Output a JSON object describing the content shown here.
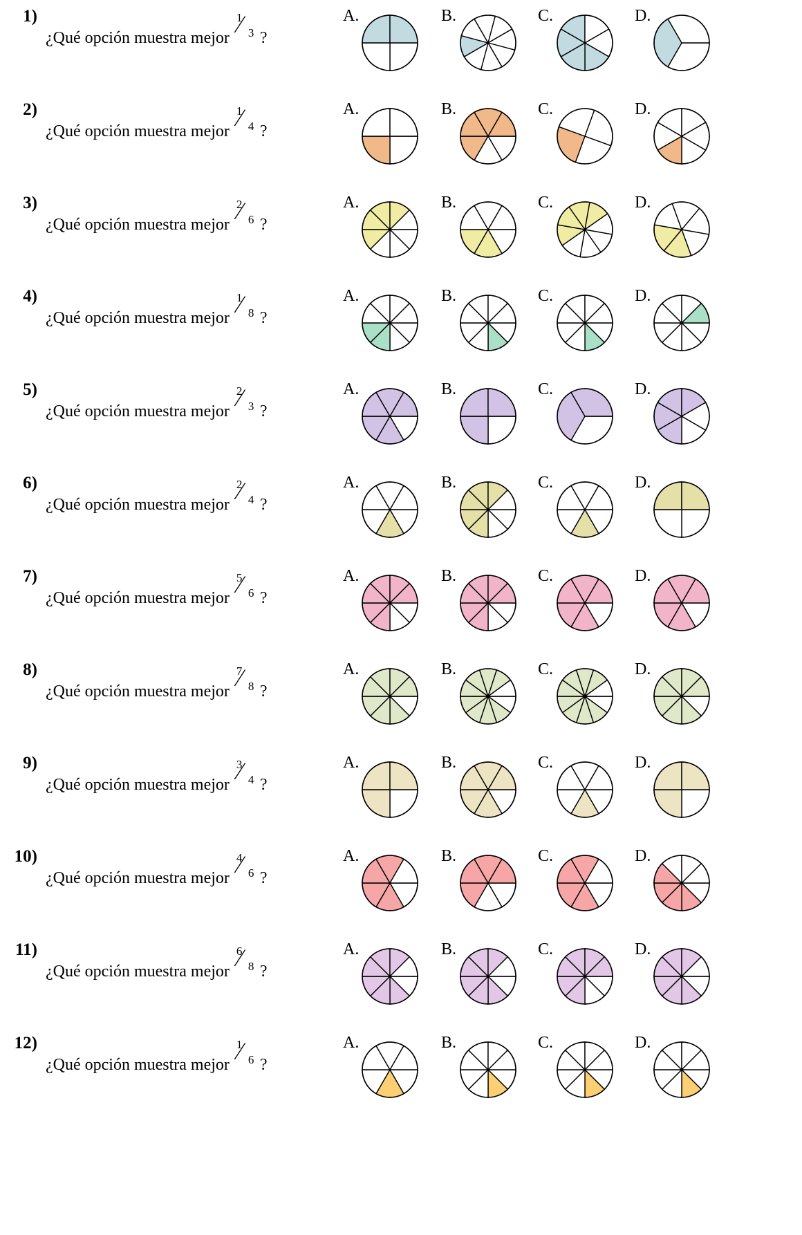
{
  "prompt": "¿Qué opción muestra mejor",
  "qmark": "?",
  "questions": [
    {
      "number": "1)",
      "num": "1",
      "den": "3",
      "color": "#c1dbe0",
      "options": [
        {
          "label": "A.",
          "slices": 4,
          "rotation": 0,
          "shaded": [
            2,
            3
          ]
        },
        {
          "label": "B.",
          "slices": 8,
          "rotation": 60,
          "shaded": [
            2
          ]
        },
        {
          "label": "C.",
          "slices": 6,
          "rotation": -30,
          "shaded": [
            1,
            2,
            3,
            4
          ]
        },
        {
          "label": "D.",
          "slices": 3,
          "rotation": 0,
          "shaded": [
            1
          ]
        }
      ]
    },
    {
      "number": "2)",
      "num": "1",
      "den": "4",
      "color": "#f1b98a",
      "options": [
        {
          "label": "A.",
          "slices": 4,
          "rotation": 0,
          "shaded": [
            1
          ]
        },
        {
          "label": "B.",
          "slices": 6,
          "rotation": 0,
          "shaded": [
            2,
            3,
            4,
            5
          ]
        },
        {
          "label": "C.",
          "slices": 4,
          "rotation": 20,
          "shaded": [
            1
          ]
        },
        {
          "label": "D.",
          "slices": 6,
          "rotation": 30,
          "shaded": [
            1
          ]
        }
      ]
    },
    {
      "number": "3)",
      "num": "2",
      "den": "6",
      "color": "#f1eca4",
      "options": [
        {
          "label": "A.",
          "slices": 8,
          "rotation": 0,
          "shaded": [
            3,
            4,
            5,
            6
          ]
        },
        {
          "label": "B.",
          "slices": 6,
          "rotation": 0,
          "shaded": [
            1,
            2
          ]
        },
        {
          "label": "C.",
          "slices": 8,
          "rotation": 10,
          "shaded": [
            3,
            4,
            5,
            6
          ]
        },
        {
          "label": "D.",
          "slices": 6,
          "rotation": 10,
          "shaded": [
            1,
            2
          ]
        }
      ]
    },
    {
      "number": "4)",
      "num": "1",
      "den": "8",
      "color": "#aadfc8",
      "options": [
        {
          "label": "A.",
          "slices": 8,
          "rotation": 0,
          "shaded": [
            2,
            3
          ]
        },
        {
          "label": "B.",
          "slices": 8,
          "rotation": 0,
          "shaded": [
            1
          ]
        },
        {
          "label": "C.",
          "slices": 8,
          "rotation": 0,
          "shaded": [
            1
          ]
        },
        {
          "label": "D.",
          "slices": 8,
          "rotation": 0,
          "shaded": [
            7
          ]
        }
      ]
    },
    {
      "number": "5)",
      "num": "2",
      "den": "3",
      "color": "#d2c3e6",
      "options": [
        {
          "label": "A.",
          "slices": 6,
          "rotation": 0,
          "shaded": [
            1,
            2,
            3,
            4,
            5
          ]
        },
        {
          "label": "B.",
          "slices": 4,
          "rotation": 0,
          "shaded": [
            1,
            2,
            3
          ]
        },
        {
          "label": "C.",
          "slices": 3,
          "rotation": 0,
          "shaded": [
            1,
            2
          ]
        },
        {
          "label": "D.",
          "slices": 6,
          "rotation": 30,
          "shaded": [
            1,
            2,
            3,
            4
          ]
        }
      ]
    },
    {
      "number": "6)",
      "num": "2",
      "den": "4",
      "color": "#e5dfa8",
      "options": [
        {
          "label": "A.",
          "slices": 6,
          "rotation": 0,
          "shaded": [
            1
          ]
        },
        {
          "label": "B.",
          "slices": 8,
          "rotation": 0,
          "shaded": [
            2,
            3,
            4,
            5,
            6
          ]
        },
        {
          "label": "C.",
          "slices": 6,
          "rotation": 0,
          "shaded": [
            1
          ]
        },
        {
          "label": "D.",
          "slices": 4,
          "rotation": 0,
          "shaded": [
            2,
            3
          ]
        }
      ]
    },
    {
      "number": "7)",
      "num": "5",
      "den": "6",
      "color": "#f1b4c9",
      "options": [
        {
          "label": "A.",
          "slices": 8,
          "rotation": 0,
          "shaded": [
            2,
            3,
            4,
            5,
            6,
            7
          ]
        },
        {
          "label": "B.",
          "slices": 8,
          "rotation": 0,
          "shaded": [
            2,
            3,
            4,
            5,
            6,
            7
          ]
        },
        {
          "label": "C.",
          "slices": 6,
          "rotation": 0,
          "shaded": [
            1,
            2,
            3,
            4,
            5
          ]
        },
        {
          "label": "D.",
          "slices": 6,
          "rotation": 0,
          "shaded": [
            1,
            2,
            3,
            4,
            5
          ]
        }
      ]
    },
    {
      "number": "8)",
      "num": "7",
      "den": "8",
      "color": "#dfe8c8",
      "options": [
        {
          "label": "A.",
          "slices": 8,
          "rotation": 0,
          "shaded": [
            1,
            2,
            3,
            4,
            5,
            6,
            7
          ]
        },
        {
          "label": "B.",
          "slices": 10,
          "rotation": 0,
          "shaded": [
            1,
            2,
            3,
            4,
            5,
            6,
            7,
            8
          ]
        },
        {
          "label": "C.",
          "slices": 10,
          "rotation": 0,
          "shaded": [
            1,
            2,
            3,
            4,
            5,
            6,
            7,
            8
          ]
        },
        {
          "label": "D.",
          "slices": 8,
          "rotation": 0,
          "shaded": [
            1,
            2,
            3,
            4,
            5,
            6,
            7
          ]
        }
      ]
    },
    {
      "number": "9)",
      "num": "3",
      "den": "4",
      "color": "#ede4c4",
      "options": [
        {
          "label": "A.",
          "slices": 4,
          "rotation": 0,
          "shaded": [
            1,
            2,
            3
          ]
        },
        {
          "label": "B.",
          "slices": 6,
          "rotation": 0,
          "shaded": [
            1,
            2,
            3,
            4,
            5
          ]
        },
        {
          "label": "C.",
          "slices": 6,
          "rotation": 0,
          "shaded": [
            1
          ]
        },
        {
          "label": "D.",
          "slices": 4,
          "rotation": 0,
          "shaded": [
            1,
            2,
            3
          ]
        }
      ]
    },
    {
      "number": "10)",
      "num": "4",
      "den": "6",
      "color": "#f6a6a6",
      "options": [
        {
          "label": "A.",
          "slices": 6,
          "rotation": 0,
          "shaded": [
            1,
            2,
            3,
            4
          ]
        },
        {
          "label": "B.",
          "slices": 6,
          "rotation": 0,
          "shaded": [
            2,
            3,
            4,
            5
          ]
        },
        {
          "label": "C.",
          "slices": 6,
          "rotation": 0,
          "shaded": [
            1,
            2,
            3,
            4
          ]
        },
        {
          "label": "D.",
          "slices": 8,
          "rotation": 0,
          "shaded": [
            1,
            2,
            3,
            4
          ]
        }
      ]
    },
    {
      "number": "11)",
      "num": "6",
      "den": "8",
      "color": "#e3c7e6",
      "options": [
        {
          "label": "A.",
          "slices": 8,
          "rotation": 0,
          "shaded": [
            1,
            2,
            3,
            4,
            5,
            6
          ]
        },
        {
          "label": "B.",
          "slices": 8,
          "rotation": 0,
          "shaded": [
            1,
            2,
            3,
            4,
            5,
            6
          ]
        },
        {
          "label": "C.",
          "slices": 8,
          "rotation": 0,
          "shaded": [
            2,
            3,
            4,
            5,
            6,
            7
          ]
        },
        {
          "label": "D.",
          "slices": 8,
          "rotation": 0,
          "shaded": [
            1,
            2,
            3,
            4,
            5,
            6
          ]
        }
      ]
    },
    {
      "number": "12)",
      "num": "1",
      "den": "6",
      "color": "#fdcf73",
      "options": [
        {
          "label": "A.",
          "slices": 6,
          "rotation": 0,
          "shaded": [
            1
          ]
        },
        {
          "label": "B.",
          "slices": 8,
          "rotation": 0,
          "shaded": [
            1
          ]
        },
        {
          "label": "C.",
          "slices": 8,
          "rotation": 0,
          "shaded": [
            1
          ]
        },
        {
          "label": "D.",
          "slices": 8,
          "rotation": 0,
          "shaded": [
            1
          ]
        }
      ]
    }
  ]
}
